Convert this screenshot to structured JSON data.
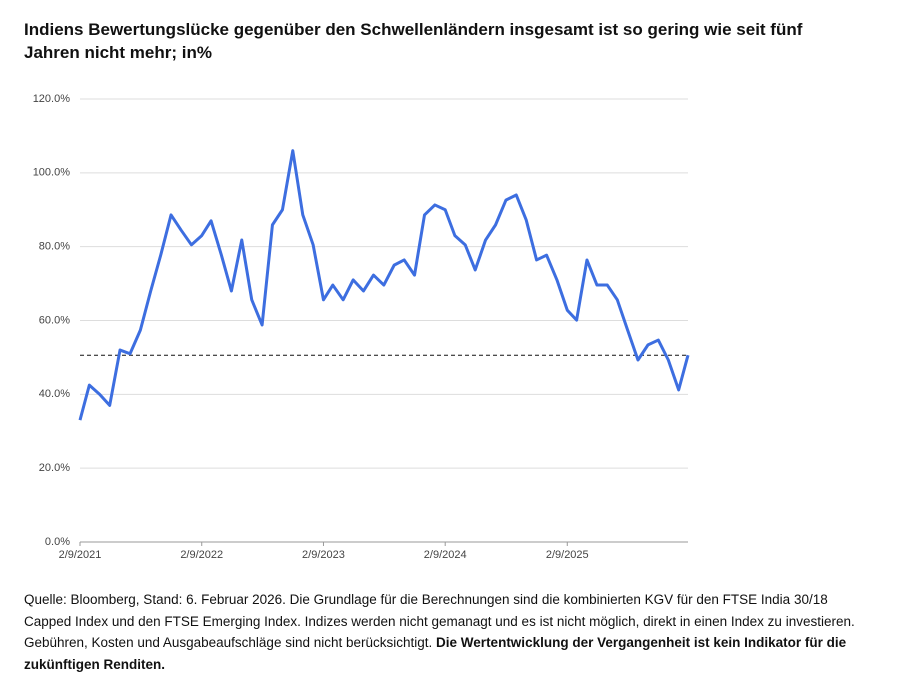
{
  "chart_data": {
    "type": "line",
    "title": "Indiens Bewertungslücke gegenüber den Schwellenländern insgesamt ist so gering wie seit fünf Jahren nicht mehr; in%",
    "x": [
      "2021-02-09",
      "2021-03-09",
      "2021-04-09",
      "2021-05-09",
      "2021-06-09",
      "2021-07-09",
      "2021-08-09",
      "2021-09-09",
      "2021-10-09",
      "2021-11-09",
      "2021-12-09",
      "2022-01-09",
      "2022-02-09",
      "2022-03-09",
      "2022-04-09",
      "2022-05-09",
      "2022-06-09",
      "2022-07-09",
      "2022-08-09",
      "2022-09-09",
      "2022-10-09",
      "2022-11-09",
      "2022-12-09",
      "2023-01-09",
      "2023-02-09",
      "2023-03-09",
      "2023-04-09",
      "2023-05-09",
      "2023-06-09",
      "2023-07-09",
      "2023-08-09",
      "2023-09-09",
      "2023-10-09",
      "2023-11-09",
      "2023-12-09",
      "2024-01-09",
      "2024-02-09",
      "2024-03-09",
      "2024-04-09",
      "2024-05-09",
      "2024-06-09",
      "2024-07-09",
      "2024-08-09",
      "2024-09-09",
      "2024-10-09",
      "2024-11-09",
      "2024-12-09",
      "2025-01-09",
      "2025-02-09",
      "2025-03-09",
      "2025-04-09",
      "2025-05-09",
      "2025-06-09",
      "2025-07-09",
      "2025-08-09",
      "2025-09-09",
      "2025-10-09",
      "2025-11-09",
      "2025-12-09",
      "2026-01-09",
      "2026-02-06"
    ],
    "series": [
      {
        "name": "Bewertungslücke",
        "color": "#3d6ee0",
        "values": [
          33,
          42.5,
          40,
          37,
          52,
          51,
          57.4,
          68,
          77.7,
          88.6,
          84.5,
          80.5,
          83,
          87,
          77.7,
          68,
          81.8,
          65.6,
          58.8,
          85.9,
          90,
          106,
          88.6,
          80.5,
          65.6,
          69.6,
          65.6,
          71,
          68,
          72.3,
          69.6,
          75,
          76.4,
          72.3,
          88.6,
          91.3,
          90,
          83,
          80.5,
          73.7,
          81.8,
          85.9,
          92.6,
          94,
          87.2,
          76.4,
          77.7,
          71,
          62.8,
          60.1,
          76.4,
          69.6,
          69.6,
          65.6,
          57.4,
          49.3,
          53.4,
          54.7,
          49.3,
          41.2,
          50.6
        ]
      }
    ],
    "xlim": [
      "2021-02-09",
      "2026-02-06"
    ],
    "xticks": [
      {
        "value": "2021-02-09",
        "label": "2/9/2021"
      },
      {
        "value": "2022-02-09",
        "label": "2/9/2022"
      },
      {
        "value": "2023-02-09",
        "label": "2/9/2023"
      },
      {
        "value": "2024-02-09",
        "label": "2/9/2024"
      },
      {
        "value": "2025-02-09",
        "label": "2/9/2025"
      }
    ],
    "ylim": [
      0,
      120
    ],
    "yticks": [
      {
        "value": 0,
        "label": "0.0%"
      },
      {
        "value": 20,
        "label": "20.0%"
      },
      {
        "value": 40,
        "label": "40.0%"
      },
      {
        "value": 60,
        "label": "60.0%"
      },
      {
        "value": 80,
        "label": "80.0%"
      },
      {
        "value": 100,
        "label": "100.0%"
      },
      {
        "value": 120,
        "label": "120.0%"
      }
    ],
    "hline": 50.6,
    "grid": true,
    "footnote": "Quelle: Bloomberg, Stand: 6. Februar 2026. Die Grundlage für die Berechnungen sind die kombinierten KGV für den FTSE India 30/18 Capped Index und den FTSE Emerging Index. Indizes werden nicht gemanagt und es ist nicht möglich, direkt in einen Index zu investieren. Gebühren, Kosten und Ausgabeaufschläge sind nicht berücksichtigt.",
    "footnote_bold": "Die Wertentwicklung der Vergangenheit ist kein Indikator für die zukünftigen Renditen."
  }
}
